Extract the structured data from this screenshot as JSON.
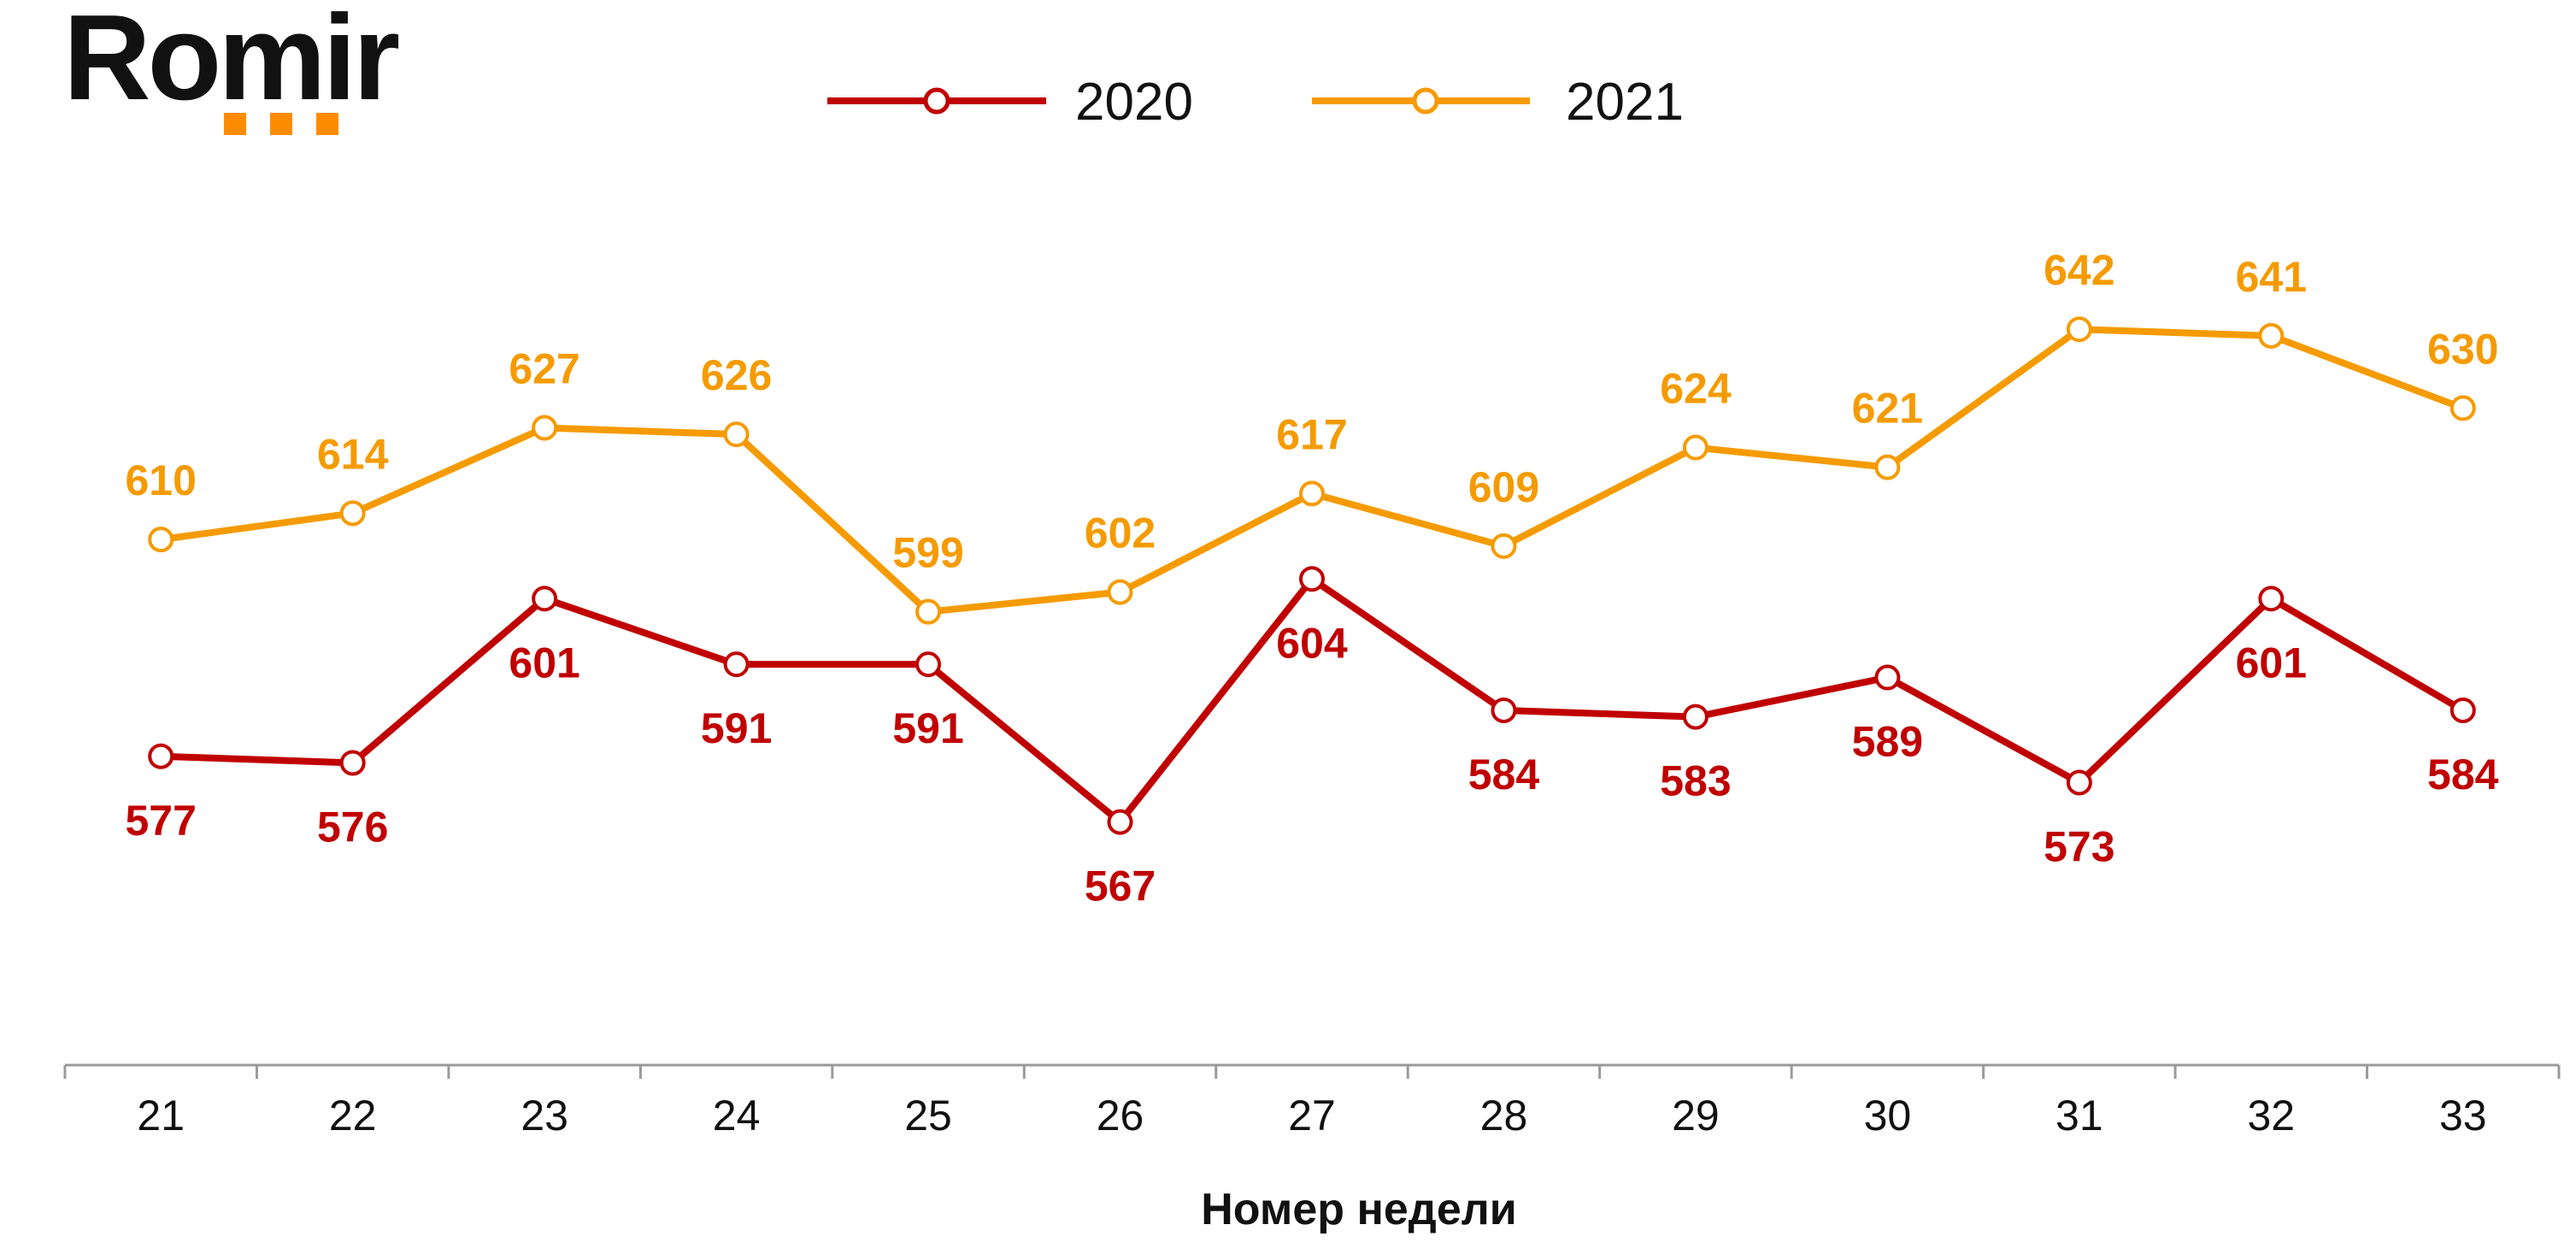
{
  "logo": {
    "text": "Romir",
    "accent_color": "#FF8C00"
  },
  "chart_data": {
    "type": "line",
    "title": "",
    "xlabel": "Номер недели",
    "ylabel": "",
    "categories": [
      "21",
      "22",
      "23",
      "24",
      "25",
      "26",
      "27",
      "28",
      "29",
      "30",
      "31",
      "32",
      "33"
    ],
    "series": [
      {
        "name": "2020",
        "color": "#C00000",
        "values": [
          577,
          576,
          601,
          591,
          591,
          567,
          604,
          584,
          583,
          589,
          573,
          601,
          584
        ],
        "label_position": [
          "below",
          "below",
          "below",
          "below",
          "below",
          "below",
          "below",
          "below",
          "below",
          "below",
          "below",
          "below",
          "below"
        ]
      },
      {
        "name": "2021",
        "color": "#F59B00",
        "values": [
          610,
          614,
          627,
          626,
          599,
          602,
          617,
          609,
          624,
          621,
          642,
          641,
          630
        ],
        "label_position": [
          "above",
          "above",
          "above",
          "above",
          "above",
          "above",
          "above",
          "above",
          "above",
          "above",
          "above",
          "above",
          "above"
        ]
      }
    ],
    "ylim": [
      530,
      670
    ],
    "grid": false,
    "legend_position": "top-center"
  }
}
